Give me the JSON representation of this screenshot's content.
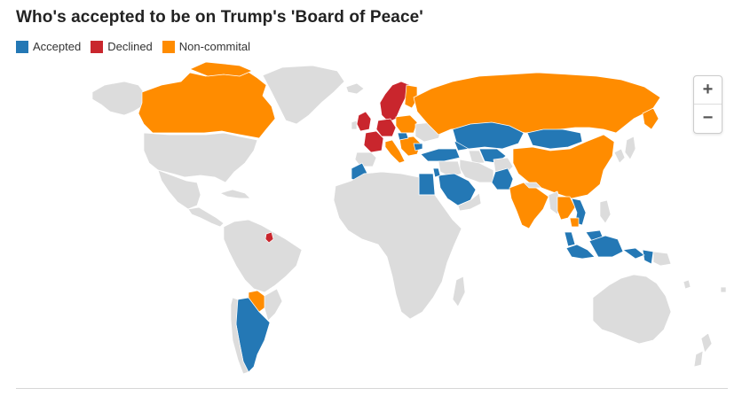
{
  "title": "Who's accepted to be on Trump's 'Board of Peace'",
  "legend": [
    {
      "label": "Accepted",
      "color": "#2478b5"
    },
    {
      "label": "Declined",
      "color": "#c9262d"
    },
    {
      "label": "Non-commital",
      "color": "#ff8c00"
    }
  ],
  "zoom": {
    "in_label": "+",
    "out_label": "−"
  },
  "colors": {
    "land": "#dcdcdc",
    "border": "#ffffff",
    "accepted": "#2478b5",
    "declined": "#c9262d",
    "noncommital": "#ff8c00"
  }
}
